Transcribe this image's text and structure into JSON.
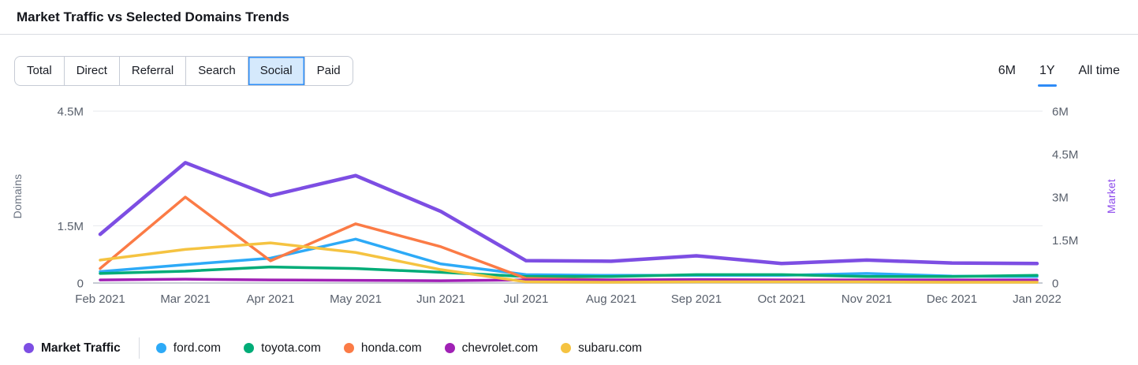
{
  "header": {
    "title": "Market Traffic vs Selected Domains Trends"
  },
  "toolbar": {
    "channel_tabs": [
      {
        "label": "Total",
        "active": false
      },
      {
        "label": "Direct",
        "active": false
      },
      {
        "label": "Referral",
        "active": false
      },
      {
        "label": "Search",
        "active": false
      },
      {
        "label": "Social",
        "active": true
      },
      {
        "label": "Paid",
        "active": false
      }
    ],
    "time_ranges": [
      {
        "label": "6M",
        "active": false
      },
      {
        "label": "1Y",
        "active": true
      },
      {
        "label": "All time",
        "active": false
      }
    ],
    "active_tab_bg": "#D5E9FC",
    "active_tab_border": "#2E8FF8",
    "active_range_underline": "#2E8BF7"
  },
  "chart_data": {
    "type": "line",
    "x": [
      "Feb 2021",
      "Mar 2021",
      "Apr 2021",
      "May 2021",
      "Jun 2021",
      "Jul 2021",
      "Aug 2021",
      "Sep 2021",
      "Oct 2021",
      "Nov 2021",
      "Dec 2021",
      "Jan 2022"
    ],
    "left_axis": {
      "label": "Domains",
      "max_M": 4.5,
      "gridlines_M": [
        4.5,
        1.5
      ],
      "ticks": [
        {
          "label": "4.5M",
          "v": 4.5
        },
        {
          "label": "1.5M",
          "v": 1.5
        },
        {
          "label": "0",
          "v": 0
        }
      ]
    },
    "right_axis": {
      "label": "Market",
      "max_M": 6,
      "ticks": [
        {
          "label": "6M",
          "v": 6
        },
        {
          "label": "4.5M",
          "v": 4.5
        },
        {
          "label": "3M",
          "v": 3
        },
        {
          "label": "1.5M",
          "v": 1.5
        },
        {
          "label": "0",
          "v": 0
        }
      ]
    },
    "grid": "horizontal-only",
    "legend_position": "bottom-left",
    "series": [
      {
        "name": "Market Traffic",
        "axis": "right",
        "color": "#7D4EE3",
        "values_M": [
          1.7,
          4.2,
          3.05,
          3.75,
          2.5,
          0.78,
          0.76,
          0.95,
          0.68,
          0.8,
          0.7,
          0.68
        ]
      },
      {
        "name": "ford.com",
        "axis": "left",
        "color": "#2DAAF7",
        "values_M": [
          0.3,
          0.48,
          0.65,
          1.15,
          0.5,
          0.22,
          0.2,
          0.2,
          0.2,
          0.25,
          0.18,
          0.17
        ]
      },
      {
        "name": "toyota.com",
        "axis": "left",
        "color": "#00AC77",
        "values_M": [
          0.25,
          0.31,
          0.42,
          0.38,
          0.28,
          0.17,
          0.17,
          0.22,
          0.22,
          0.17,
          0.17,
          0.2
        ]
      },
      {
        "name": "honda.com",
        "axis": "left",
        "color": "#FB7B46",
        "values_M": [
          0.38,
          2.25,
          0.58,
          1.55,
          0.95,
          0.12,
          0.08,
          0.08,
          0.08,
          0.07,
          0.06,
          0.06
        ]
      },
      {
        "name": "chevrolet.com",
        "axis": "left",
        "color": "#A021B5",
        "values_M": [
          0.08,
          0.1,
          0.08,
          0.07,
          0.06,
          0.08,
          0.08,
          0.09,
          0.08,
          0.08,
          0.08,
          0.08
        ]
      },
      {
        "name": "subaru.com",
        "axis": "left",
        "color": "#F5C341",
        "values_M": [
          0.6,
          0.88,
          1.05,
          0.8,
          0.35,
          0.03,
          0.02,
          0.03,
          0.03,
          0.03,
          0.02,
          0.02
        ]
      }
    ]
  }
}
